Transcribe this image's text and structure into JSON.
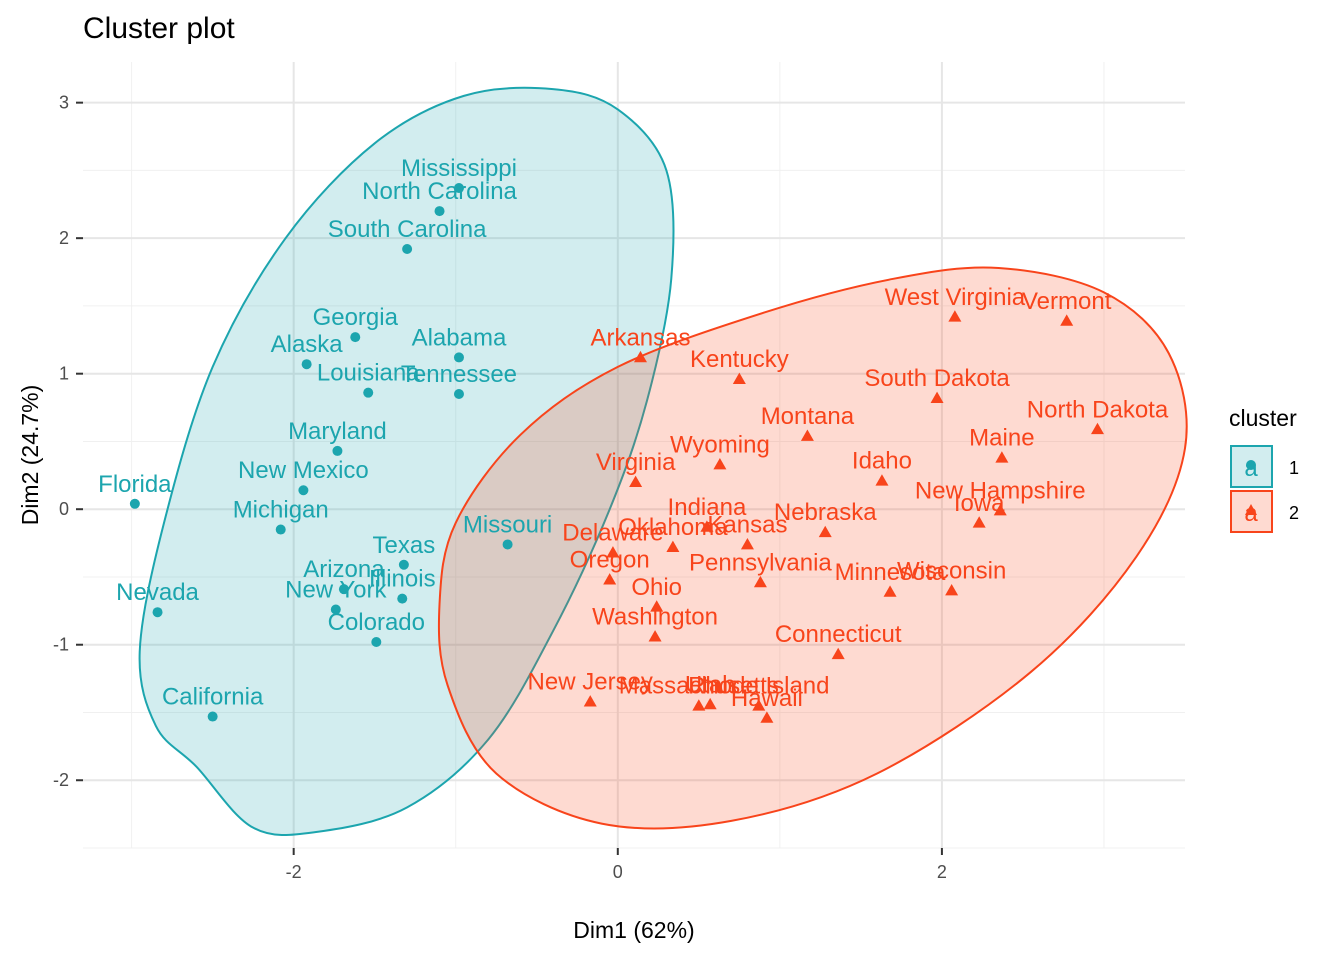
{
  "chart_data": {
    "type": "scatter",
    "title": "Cluster plot",
    "xlabel": "Dim1 (62%)",
    "ylabel": "Dim2 (24.7%)",
    "xlim": [
      -3.3,
      3.5
    ],
    "ylim": [
      -2.5,
      3.3
    ],
    "x_ticks": [
      -2,
      0,
      2
    ],
    "y_ticks": [
      -2,
      -1,
      0,
      1,
      2,
      3
    ],
    "grid": true,
    "legend": {
      "title": "cluster",
      "position": "right",
      "entries": [
        {
          "label": "1",
          "key_glyph": "a"
        },
        {
          "label": "2",
          "key_glyph": "a"
        }
      ]
    },
    "series": [
      {
        "name": "1",
        "color": "#1CA5AE",
        "fill": "#1CA5AE",
        "shape": "circle",
        "hull": [
          [
            -2.6,
            -1.9
          ],
          [
            -2.25,
            -2.35
          ],
          [
            -1.85,
            -2.38
          ],
          [
            -1.3,
            -2.2
          ],
          [
            -0.8,
            -1.7
          ],
          [
            -0.4,
            -0.9
          ],
          [
            -0.05,
            0.0
          ],
          [
            0.18,
            0.8
          ],
          [
            0.33,
            1.7
          ],
          [
            0.3,
            2.5
          ],
          [
            0.0,
            2.95
          ],
          [
            -0.4,
            3.1
          ],
          [
            -0.95,
            3.05
          ],
          [
            -1.5,
            2.7
          ],
          [
            -2.05,
            2.0
          ],
          [
            -2.5,
            1.05
          ],
          [
            -2.8,
            -0.1
          ],
          [
            -2.95,
            -1.05
          ],
          [
            -2.85,
            -1.6
          ]
        ],
        "points": [
          {
            "label": "Mississippi",
            "x": -0.98,
            "y": 2.37
          },
          {
            "label": "North Carolina",
            "x": -1.1,
            "y": 2.2
          },
          {
            "label": "South Carolina",
            "x": -1.3,
            "y": 1.92
          },
          {
            "label": "Georgia",
            "x": -1.62,
            "y": 1.27
          },
          {
            "label": "Alaska",
            "x": -1.92,
            "y": 1.07
          },
          {
            "label": "Alabama",
            "x": -0.98,
            "y": 1.12
          },
          {
            "label": "Louisiana",
            "x": -1.54,
            "y": 0.86
          },
          {
            "label": "Tennessee",
            "x": -0.98,
            "y": 0.85
          },
          {
            "label": "Maryland",
            "x": -1.73,
            "y": 0.43
          },
          {
            "label": "New Mexico",
            "x": -1.94,
            "y": 0.14
          },
          {
            "label": "Florida",
            "x": -2.98,
            "y": 0.04
          },
          {
            "label": "Michigan",
            "x": -2.08,
            "y": -0.15
          },
          {
            "label": "Missouri",
            "x": -0.68,
            "y": -0.26
          },
          {
            "label": "Texas",
            "x": -1.32,
            "y": -0.41
          },
          {
            "label": "Illinois",
            "x": -1.33,
            "y": -0.66
          },
          {
            "label": "Arizona",
            "x": -1.69,
            "y": -0.59
          },
          {
            "label": "New York",
            "x": -1.74,
            "y": -0.74
          },
          {
            "label": "Colorado",
            "x": -1.49,
            "y": -0.98
          },
          {
            "label": "Nevada",
            "x": -2.84,
            "y": -0.76
          },
          {
            "label": "California",
            "x": -2.5,
            "y": -1.53
          }
        ]
      },
      {
        "name": "2",
        "color": "#F8441B",
        "fill": "#F8441B",
        "shape": "triangle",
        "hull": [
          [
            -1.05,
            -1.3
          ],
          [
            -0.75,
            -1.95
          ],
          [
            -0.1,
            -2.32
          ],
          [
            0.7,
            -2.3
          ],
          [
            1.6,
            -1.95
          ],
          [
            2.55,
            -1.2
          ],
          [
            3.2,
            -0.35
          ],
          [
            3.5,
            0.45
          ],
          [
            3.4,
            1.15
          ],
          [
            3.0,
            1.6
          ],
          [
            2.35,
            1.78
          ],
          [
            1.7,
            1.7
          ],
          [
            0.9,
            1.45
          ],
          [
            0.0,
            1.05
          ],
          [
            -0.6,
            0.55
          ],
          [
            -1.0,
            -0.1
          ],
          [
            -1.1,
            -0.7
          ]
        ],
        "points": [
          {
            "label": "West Virginia",
            "x": 2.08,
            "y": 1.42
          },
          {
            "label": "Vermont",
            "x": 2.77,
            "y": 1.39
          },
          {
            "label": "Arkansas",
            "x": 0.14,
            "y": 1.12
          },
          {
            "label": "Kentucky",
            "x": 0.75,
            "y": 0.96
          },
          {
            "label": "South Dakota",
            "x": 1.97,
            "y": 0.82
          },
          {
            "label": "North Dakota",
            "x": 2.96,
            "y": 0.59
          },
          {
            "label": "Montana",
            "x": 1.17,
            "y": 0.54
          },
          {
            "label": "Maine",
            "x": 2.37,
            "y": 0.38
          },
          {
            "label": "Wyoming",
            "x": 0.63,
            "y": 0.33
          },
          {
            "label": "Idaho",
            "x": 1.63,
            "y": 0.21
          },
          {
            "label": "Virginia",
            "x": 0.11,
            "y": 0.2
          },
          {
            "label": "New Hampshire",
            "x": 2.36,
            "y": -0.01
          },
          {
            "label": "Iowa",
            "x": 2.23,
            "y": -0.1
          },
          {
            "label": "Indiana",
            "x": 0.55,
            "y": -0.13
          },
          {
            "label": "Nebraska",
            "x": 1.28,
            "y": -0.17
          },
          {
            "label": "Kansas",
            "x": 0.8,
            "y": -0.26
          },
          {
            "label": "Oklahoma",
            "x": 0.34,
            "y": -0.28
          },
          {
            "label": "Delaware",
            "x": -0.03,
            "y": -0.32
          },
          {
            "label": "Pennsylvania",
            "x": 0.88,
            "y": -0.54
          },
          {
            "label": "Oregon",
            "x": -0.05,
            "y": -0.52
          },
          {
            "label": "Wisconsin",
            "x": 2.06,
            "y": -0.6
          },
          {
            "label": "Minnesota",
            "x": 1.68,
            "y": -0.61
          },
          {
            "label": "Ohio",
            "x": 0.24,
            "y": -0.72
          },
          {
            "label": "Washington",
            "x": 0.23,
            "y": -0.94
          },
          {
            "label": "Connecticut",
            "x": 1.36,
            "y": -1.07
          },
          {
            "label": "New Jersey",
            "x": -0.17,
            "y": -1.42
          },
          {
            "label": "Massachusetts",
            "x": 0.5,
            "y": -1.45
          },
          {
            "label": "Utah",
            "x": 0.57,
            "y": -1.44
          },
          {
            "label": "Rhode Island",
            "x": 0.87,
            "y": -1.45
          },
          {
            "label": "Hawaii",
            "x": 0.92,
            "y": -1.54
          }
        ]
      }
    ]
  }
}
